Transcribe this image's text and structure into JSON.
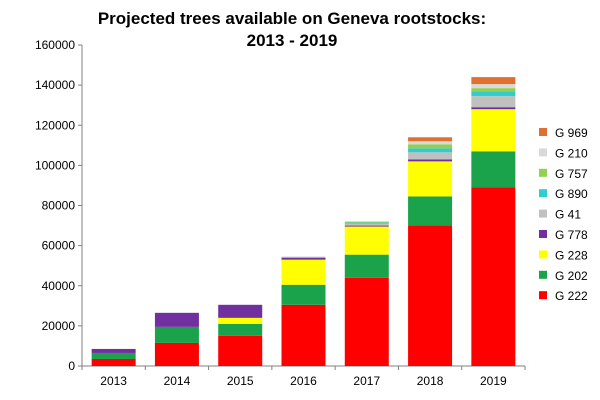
{
  "chart_data": {
    "type": "bar",
    "stacked": true,
    "title_lines": [
      "Projected trees available on Geneva rootstocks:",
      "2013 - 2019"
    ],
    "xlabel": "",
    "ylabel": "",
    "categories": [
      "2013",
      "2014",
      "2015",
      "2016",
      "2017",
      "2018",
      "2019"
    ],
    "ylim": [
      0,
      160000
    ],
    "yticks": [
      "0",
      "20000",
      "40000",
      "60000",
      "80000",
      "100000",
      "120000",
      "140000",
      "160000"
    ],
    "grid": false,
    "legend_position": "right",
    "series": [
      {
        "name": "G 222",
        "color": "#ff0000",
        "values": [
          3500,
          11500,
          15000,
          30500,
          44000,
          70000,
          89000
        ]
      },
      {
        "name": "G 202",
        "color": "#1aa34a",
        "values": [
          3000,
          8000,
          6000,
          10000,
          11500,
          14500,
          18000
        ]
      },
      {
        "name": "G 228",
        "color": "#ffff00",
        "values": [
          0,
          0,
          3000,
          12500,
          14000,
          17500,
          21000
        ]
      },
      {
        "name": "G 778",
        "color": "#7030a0",
        "values": [
          2000,
          7000,
          6500,
          1000,
          500,
          1000,
          1000
        ]
      },
      {
        "name": "G 41",
        "color": "#c0c0c0",
        "values": [
          0,
          0,
          0,
          500,
          1000,
          3500,
          5500
        ]
      },
      {
        "name": "G 890",
        "color": "#33cccc",
        "values": [
          0,
          0,
          0,
          0,
          500,
          2000,
          2500
        ]
      },
      {
        "name": "G 757",
        "color": "#92d050",
        "values": [
          0,
          0,
          0,
          0,
          500,
          2000,
          1500
        ]
      },
      {
        "name": "G 210",
        "color": "#d9d9d9",
        "values": [
          0,
          0,
          0,
          0,
          0,
          1500,
          2000
        ]
      },
      {
        "name": "G 969",
        "color": "#e07030",
        "values": [
          0,
          0,
          0,
          0,
          0,
          2000,
          3500
        ]
      }
    ]
  }
}
